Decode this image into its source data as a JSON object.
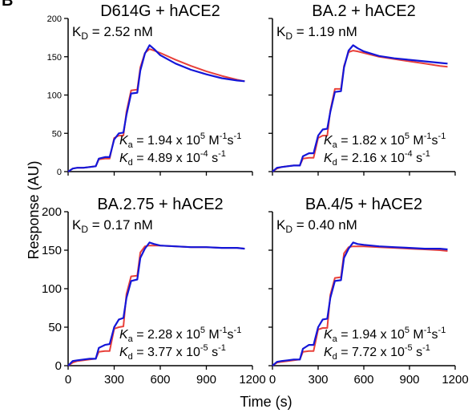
{
  "figure": {
    "panel_label": "B",
    "ylabel": "Response (AU)",
    "xlabel": "Time (s)"
  },
  "colors": {
    "fit": "#e8403a",
    "data": "#1416d8"
  },
  "chart_data": [
    {
      "type": "line",
      "title": "D614G + hACE2",
      "kd_text": {
        "prefix": "K",
        "sub": "D",
        "rest": " = 2.52 nM"
      },
      "ka_text": {
        "k": "K",
        "sub": "a",
        "eq": " = 1.94 x 10",
        "exp": "5",
        "unit1": " M",
        "unit1sup": "-1",
        "unit2": "s",
        "unit2sup": "-1"
      },
      "kdiss_text": {
        "k": "K",
        "sub": "d",
        "eq": " = 4.89 x 10",
        "exp": "-4",
        "unit": " s",
        "unitsup": "-1"
      },
      "xlim": [
        0,
        1200
      ],
      "ylim": [
        0,
        200
      ],
      "yticks": [
        "0",
        "50",
        "100",
        "150",
        "200"
      ],
      "xticks": [],
      "show_xtick_labels": false,
      "steps": [
        {
          "t0": 0,
          "t1": 60,
          "y0": 2,
          "y1": 5
        },
        {
          "t0": 60,
          "t1": 180,
          "y0": 5,
          "y1": 7
        },
        {
          "t0": 180,
          "t1": 270,
          "y0": 18,
          "y1": 17
        },
        {
          "t0": 270,
          "t1": 360,
          "y0": 47,
          "y1": 47
        },
        {
          "t0": 360,
          "t1": 450,
          "y0": 88,
          "y1": 107
        },
        {
          "t0": 450,
          "t1": 530,
          "y0": 135,
          "y1": 160
        }
      ],
      "series": [
        {
          "name": "",
          "role": "data",
          "x": [
            0,
            30,
            60,
            100,
            140,
            180,
            200,
            240,
            270,
            300,
            330,
            360,
            380,
            410,
            450,
            470,
            500,
            530,
            560,
            600,
            700,
            800,
            900,
            1000,
            1100,
            1150
          ],
          "y": [
            0,
            4,
            5,
            5,
            6,
            7,
            17,
            19,
            19,
            42,
            50,
            51,
            74,
            102,
            103,
            132,
            154,
            165,
            160,
            152,
            141,
            133,
            127,
            122,
            119,
            118
          ]
        },
        {
          "name": "",
          "role": "fit",
          "x": [
            0,
            30,
            60,
            100,
            140,
            180,
            200,
            240,
            270,
            300,
            330,
            360,
            380,
            410,
            450,
            470,
            500,
            530,
            560,
            600,
            700,
            800,
            900,
            1000,
            1100,
            1150
          ],
          "y": [
            0,
            4,
            5,
            5,
            6,
            7,
            16,
            17,
            17,
            44,
            47,
            47,
            78,
            106,
            107,
            136,
            155,
            160,
            158,
            155,
            146,
            138,
            131,
            125,
            120,
            118
          ]
        }
      ]
    },
    {
      "type": "line",
      "title": "BA.2 + hACE2",
      "kd_text": {
        "prefix": "K",
        "sub": "D",
        "rest": " = 1.19 nM"
      },
      "ka_text": {
        "k": "K",
        "sub": "a",
        "eq": " = 1.82 x 10",
        "exp": "5",
        "unit1": " M",
        "unit1sup": "-1",
        "unit2": "s",
        "unit2sup": "-1"
      },
      "kdiss_text": {
        "k": "K",
        "sub": "d",
        "eq": " = 2.16 x 10",
        "exp": "-4",
        "unit": " s",
        "unitsup": "-1"
      },
      "xlim": [
        0,
        1200
      ],
      "ylim": [
        0,
        200
      ],
      "yticks": [],
      "xticks": [],
      "show_xtick_labels": false,
      "series": [
        {
          "name": "",
          "role": "data",
          "x": [
            0,
            30,
            60,
            100,
            140,
            180,
            200,
            240,
            270,
            300,
            330,
            360,
            380,
            410,
            450,
            470,
            500,
            530,
            560,
            600,
            700,
            800,
            900,
            1000,
            1100,
            1150
          ],
          "y": [
            0,
            5,
            6,
            7,
            8,
            8,
            20,
            24,
            24,
            47,
            55,
            56,
            78,
            104,
            105,
            136,
            158,
            165,
            161,
            157,
            151,
            148,
            146,
            144,
            142,
            141
          ]
        },
        {
          "name": "",
          "role": "fit",
          "x": [
            0,
            30,
            60,
            100,
            140,
            180,
            200,
            240,
            270,
            300,
            330,
            360,
            380,
            410,
            450,
            470,
            500,
            530,
            560,
            600,
            700,
            800,
            900,
            1000,
            1100,
            1150
          ],
          "y": [
            0,
            4,
            6,
            7,
            8,
            8,
            17,
            18,
            18,
            44,
            47,
            47,
            80,
            108,
            108,
            138,
            156,
            158,
            157,
            155,
            150,
            147,
            144,
            141,
            138,
            137
          ]
        }
      ]
    },
    {
      "type": "line",
      "title": "BA.2.75 + hACE2",
      "kd_text": {
        "prefix": "K",
        "sub": "D",
        "rest": " = 0.17 nM"
      },
      "ka_text": {
        "k": "K",
        "sub": "a",
        "eq": " = 2.28 x 10",
        "exp": "5",
        "unit1": " M",
        "unit1sup": "-1",
        "unit2": "s",
        "unit2sup": "-1"
      },
      "kdiss_text": {
        "k": "K",
        "sub": "d",
        "eq": " = 3.77 x 10",
        "exp": "-5",
        "unit": " s",
        "unitsup": "-1"
      },
      "xlim": [
        0,
        1200
      ],
      "ylim": [
        0,
        200
      ],
      "yticks": [
        "0",
        "50",
        "100",
        "150",
        "200"
      ],
      "xticks": [
        "0",
        "300",
        "600",
        "900",
        "1200"
      ],
      "show_xtick_labels": true,
      "series": [
        {
          "name": "",
          "role": "data",
          "x": [
            0,
            30,
            60,
            100,
            140,
            180,
            200,
            240,
            270,
            300,
            330,
            360,
            380,
            410,
            450,
            470,
            500,
            530,
            560,
            600,
            700,
            800,
            900,
            1000,
            1100,
            1150
          ],
          "y": [
            0,
            6,
            7,
            8,
            9,
            9,
            23,
            27,
            28,
            50,
            60,
            62,
            88,
            110,
            112,
            140,
            152,
            160,
            158,
            156,
            155,
            154,
            154,
            153,
            153,
            152
          ]
        },
        {
          "name": "",
          "role": "fit",
          "x": [
            0,
            30,
            60,
            100,
            140,
            180,
            200,
            240,
            270,
            300,
            330,
            360,
            380,
            410,
            450,
            470,
            500,
            530,
            560,
            600,
            700,
            800,
            900,
            1000,
            1100,
            1150
          ],
          "y": [
            0,
            4,
            6,
            7,
            8,
            9,
            18,
            19,
            19,
            48,
            50,
            51,
            93,
            116,
            117,
            147,
            155,
            156,
            156,
            156,
            155,
            154,
            154,
            153,
            153,
            152
          ]
        }
      ]
    },
    {
      "type": "line",
      "title": "BA.4/5 + hACE2",
      "kd_text": {
        "prefix": "K",
        "sub": "D",
        "rest": " = 0.40 nM"
      },
      "ka_text": {
        "k": "K",
        "sub": "a",
        "eq": " = 1.94 x 10",
        "exp": "5",
        "unit1": " M",
        "unit1sup": "-1",
        "unit2": "s",
        "unit2sup": "-1"
      },
      "kdiss_text": {
        "k": "K",
        "sub": "d",
        "eq": " = 7.72 x 10",
        "exp": "-5",
        "unit": " s",
        "unitsup": "-1"
      },
      "xlim": [
        0,
        1200
      ],
      "ylim": [
        0,
        200
      ],
      "yticks": [],
      "xticks": [
        "0",
        "300",
        "600",
        "900",
        "1200"
      ],
      "show_xtick_labels": true,
      "series": [
        {
          "name": "",
          "role": "data",
          "x": [
            0,
            30,
            60,
            100,
            140,
            180,
            200,
            240,
            270,
            300,
            330,
            360,
            380,
            410,
            450,
            470,
            500,
            530,
            560,
            600,
            700,
            800,
            900,
            1000,
            1100,
            1150
          ],
          "y": [
            0,
            5,
            6,
            7,
            8,
            8,
            22,
            27,
            27,
            50,
            60,
            61,
            88,
            110,
            111,
            140,
            152,
            160,
            158,
            157,
            155,
            154,
            153,
            152,
            152,
            151
          ]
        },
        {
          "name": "",
          "role": "fit",
          "x": [
            0,
            30,
            60,
            100,
            140,
            180,
            200,
            240,
            270,
            300,
            330,
            360,
            380,
            410,
            450,
            470,
            500,
            530,
            560,
            600,
            700,
            800,
            900,
            1000,
            1100,
            1150
          ],
          "y": [
            0,
            4,
            5,
            6,
            7,
            8,
            18,
            19,
            19,
            47,
            49,
            49,
            92,
            114,
            115,
            146,
            154,
            155,
            155,
            155,
            154,
            153,
            152,
            151,
            150,
            149
          ]
        }
      ]
    }
  ]
}
